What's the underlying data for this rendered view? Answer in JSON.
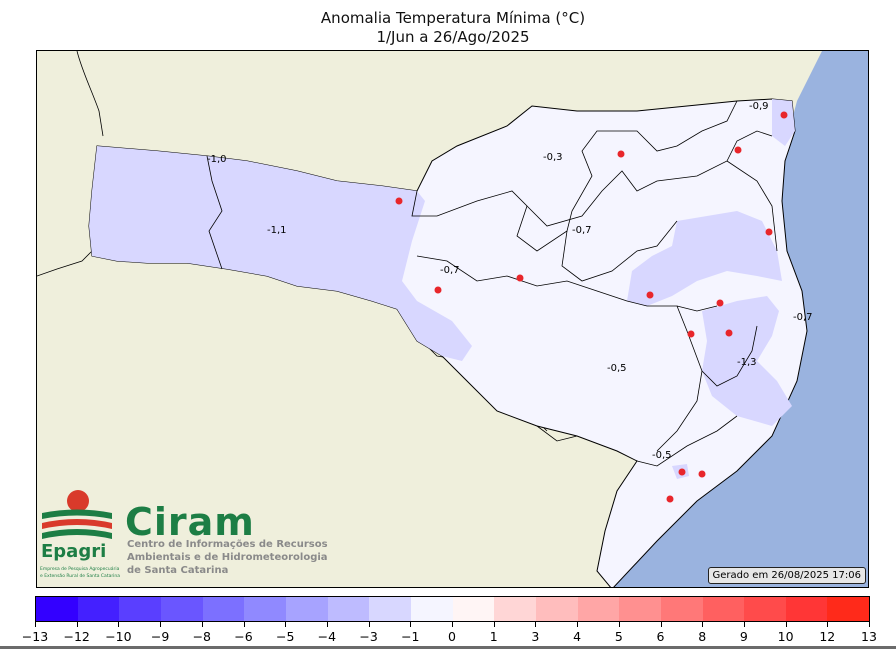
{
  "title": "Anomalia Temperatura Mínima (°C)",
  "subtitle": "1/Jun a 26/Ago/2025",
  "generated": "Gerado em 26/08/2025 17:06",
  "logo": {
    "ciram": "Ciram",
    "ciram_lines": [
      "Centro de Informações de Recursos",
      "Ambientais e de Hidrometeorologia",
      "de Santa Catarina"
    ],
    "epagri": "Epagri",
    "epagri_lines": [
      "Empresa de Pesquisa Agropecuária",
      "e Extensão Rural de Santa Catarina"
    ]
  },
  "contour_labels": [
    "-0,9",
    "-1,0",
    "-0,3",
    "-1,1",
    "-0,7",
    "-0,7",
    "-0,7",
    "-1,3",
    "-0,5",
    "-0,5"
  ],
  "colorbar": {
    "ticks": [
      "−13",
      "−12",
      "−10",
      "−9",
      "−8",
      "−6",
      "−5",
      "−4",
      "−3",
      "−1",
      "0",
      "1",
      "3",
      "4",
      "5",
      "6",
      "8",
      "9",
      "10",
      "12",
      "13"
    ],
    "colors": [
      "#3300ff",
      "#4420ff",
      "#5a3fff",
      "#6a56ff",
      "#7c70ff",
      "#9089ff",
      "#a7a3ff",
      "#bebbff",
      "#d8d7ff",
      "#f5f5ff",
      "#fff5f5",
      "#ffd6d6",
      "#ffbdbd",
      "#ffa6a6",
      "#ff9090",
      "#ff7878",
      "#ff6060",
      "#ff4b4b",
      "#ff3636",
      "#ff2a1a"
    ]
  },
  "colors": {
    "ocean": "#9ab3df",
    "land": "#efefdc",
    "state": "#f5f5ff",
    "anom_neg": "#d8d7ff",
    "station": "#e8262b"
  }
}
